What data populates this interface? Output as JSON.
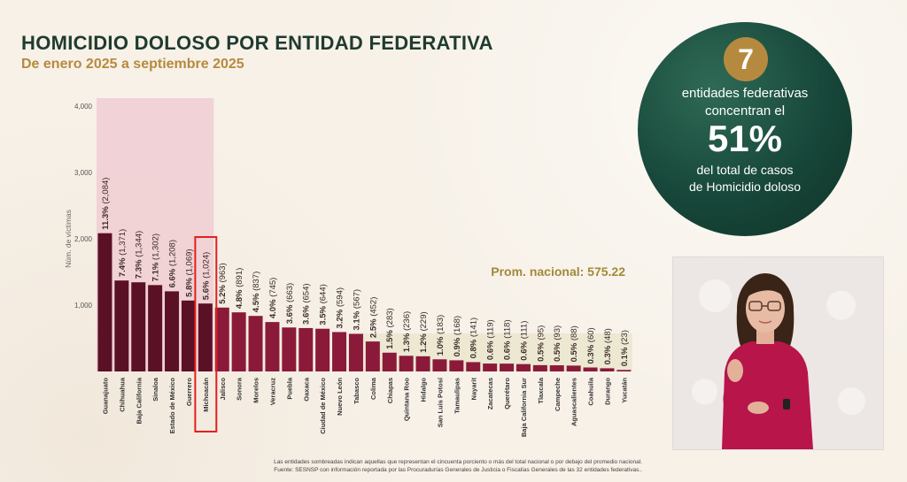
{
  "header": {
    "title": "HOMICIDIO DOLOSO POR ENTIDAD FEDERATIVA",
    "subtitle": "De enero 2025 a septiembre 2025"
  },
  "summary": {
    "count": "7",
    "line1": "entidades federativas",
    "line2": "concentran el",
    "percent": "51%",
    "line3": "del total de casos",
    "line4": "de Homicidio doloso"
  },
  "footnotes": {
    "line1": "Las entidades sombreadas indican aquellas que representan el cincuenta porciento o más del total nacional o por debajo del promedio nacional.",
    "line2": "Fuente: SESNSP con información reportada por las Procuradurías Generales de Justicia o Fiscalías Generales de las 32 entidades federativas.."
  },
  "colors": {
    "dark_bar": "#5a1025",
    "bar": "#8b1a3a",
    "highlight_top": "#f0cdd2",
    "below_avg_band": "#ebe7cf",
    "avg_label": "#a08a3a",
    "selected_box": "#e02020"
  },
  "chart_data": {
    "type": "bar",
    "ylabel": "Núm. de víctimas",
    "ylim": [
      0,
      4000
    ],
    "yticks": [
      "1,000",
      "2,000",
      "3,000",
      "4,000"
    ],
    "ytick_values": [
      1000,
      2000,
      3000,
      4000
    ],
    "average_label": "Prom. nacional: 575.22",
    "average": 575.22,
    "highlighted_count": 7,
    "selected": "Michoacán",
    "categories": [
      "Guanajuato",
      "Chihuahua",
      "Baja California",
      "Sinaloa",
      "Estado de México",
      "Guerrero",
      "Michoacán",
      "Jalisco",
      "Sonora",
      "Morelos",
      "Veracruz",
      "Puebla",
      "Oaxaca",
      "Ciudad de México",
      "Nuevo León",
      "Tabasco",
      "Colima",
      "Chiapas",
      "Quintana Roo",
      "Hidalgo",
      "San Luis Potosí",
      "Tamaulipas",
      "Nayarit",
      "Zacatecas",
      "Querétaro",
      "Baja California Sur",
      "Tlaxcala",
      "Campeche",
      "Aguascalientes",
      "Coahuila",
      "Durango",
      "Yucatán"
    ],
    "values": [
      2084,
      1371,
      1344,
      1302,
      1208,
      1069,
      1024,
      963,
      891,
      837,
      745,
      663,
      654,
      644,
      594,
      567,
      452,
      283,
      236,
      229,
      183,
      168,
      141,
      119,
      118,
      111,
      95,
      93,
      88,
      60,
      48,
      23
    ],
    "percent_labels": [
      "11.3%",
      "7.4%",
      "7.3%",
      "7.1%",
      "6.6%",
      "5.8%",
      "5.6%",
      "5.2%",
      "4.8%",
      "4.5%",
      "4.0%",
      "3.6%",
      "3.6%",
      "3.5%",
      "3.2%",
      "3.1%",
      "2.5%",
      "1.5%",
      "1.3%",
      "1.2%",
      "1.0%",
      "0.9%",
      "0.8%",
      "0.6%",
      "0.6%",
      "0.6%",
      "0.5%",
      "0.5%",
      "0.5%",
      "0.3%",
      "0.3%",
      "0.1%"
    ],
    "value_labels": [
      "(2,084)",
      "(1,371)",
      "(1,344)",
      "(1,302)",
      "(1,208)",
      "(1,069)",
      "(1,024)",
      "(963)",
      "(891)",
      "(837)",
      "(745)",
      "(663)",
      "(654)",
      "(644)",
      "(594)",
      "(567)",
      "(452)",
      "(283)",
      "(236)",
      "(229)",
      "(183)",
      "(168)",
      "(141)",
      "(119)",
      "(118)",
      "(111)",
      "(95)",
      "(93)",
      "(88)",
      "(60)",
      "(48)",
      "(23)"
    ]
  }
}
